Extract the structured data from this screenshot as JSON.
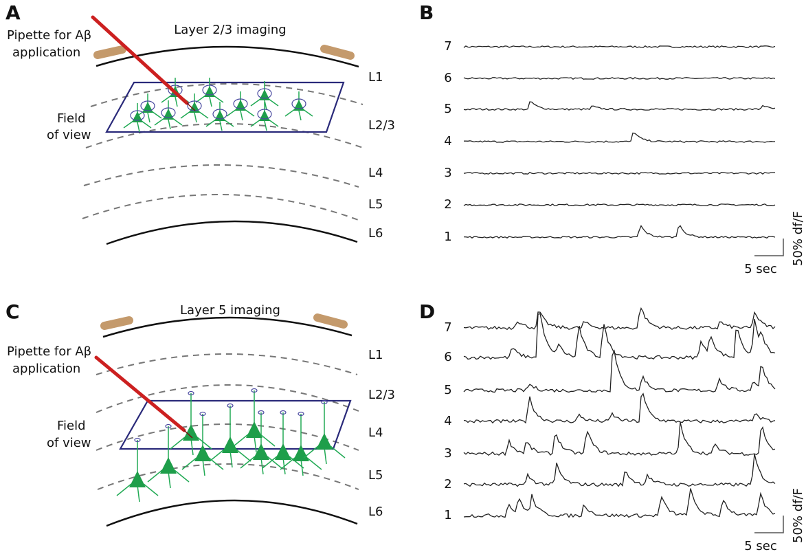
{
  "panels": [
    {
      "letter": "A",
      "title": "Layer 2/3 imaging",
      "pipette_label": [
        "Pipette for Aβ",
        "application"
      ],
      "fov_label": [
        "Field",
        "of view"
      ],
      "layers": [
        "L1",
        "L2/3",
        "L4",
        "L5",
        "L6"
      ]
    },
    {
      "letter": "B",
      "trace_labels": [
        "7",
        "6",
        "5",
        "4",
        "3",
        "2",
        "1"
      ],
      "scale_y": "50% df/F",
      "scale_x": "5 sec"
    },
    {
      "letter": "C",
      "title": "Layer 5 imaging",
      "pipette_label": [
        "Pipette for Aβ",
        "application"
      ],
      "fov_label": [
        "Field",
        "of view"
      ],
      "layers": [
        "L1",
        "L2/3",
        "L4",
        "L5",
        "L6"
      ]
    },
    {
      "letter": "D",
      "trace_labels": [
        "7",
        "6",
        "5",
        "4",
        "3",
        "2",
        "1"
      ],
      "scale_y": "50% df/F",
      "scale_x": "5 sec"
    }
  ]
}
